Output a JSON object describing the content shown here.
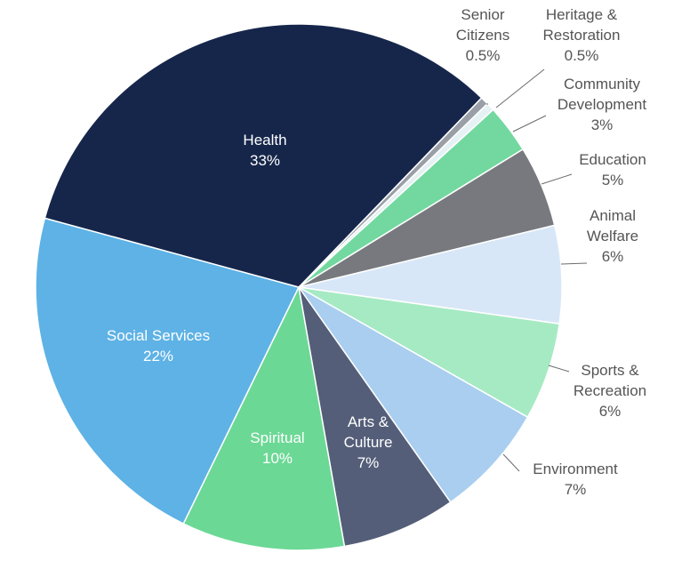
{
  "chart_data": {
    "type": "pie",
    "title": "",
    "start_angle_deg": 44,
    "direction": "clockwise",
    "slices": [
      {
        "label": [
          "Senior",
          "Citizens"
        ],
        "value": 0.5,
        "value_label": "0.5%",
        "color": "#9a9ea6",
        "label_placement": "outside-top"
      },
      {
        "label": [
          "Heritage &",
          "Restoration"
        ],
        "value": 0.5,
        "value_label": "0.5%",
        "color": "#e6f1f4",
        "label_placement": "outside-top"
      },
      {
        "label": [
          "Community",
          "Development"
        ],
        "value": 3,
        "value_label": "3%",
        "color": "#72d89f",
        "label_placement": "outside"
      },
      {
        "label": [
          "Education"
        ],
        "value": 5,
        "value_label": "5%",
        "color": "#77797e",
        "label_placement": "outside"
      },
      {
        "label": [
          "Animal",
          "Welfare"
        ],
        "value": 6,
        "value_label": "6%",
        "color": "#d8e7f7",
        "label_placement": "outside"
      },
      {
        "label": [
          "Sports &",
          "Recreation"
        ],
        "value": 6,
        "value_label": "6%",
        "color": "#a6eac3",
        "label_placement": "outside"
      },
      {
        "label": [
          "Environment"
        ],
        "value": 7,
        "value_label": "7%",
        "color": "#a9ceef",
        "label_placement": "outside"
      },
      {
        "label": [
          "Arts &",
          "Culture"
        ],
        "value": 7,
        "value_label": "7%",
        "color": "#545e79",
        "label_placement": "inside"
      },
      {
        "label": [
          "Spiritual"
        ],
        "value": 10,
        "value_label": "10%",
        "color": "#6cd895",
        "label_placement": "inside"
      },
      {
        "label": [
          "Social Services"
        ],
        "value": 22,
        "value_label": "22%",
        "color": "#5eb2e5",
        "label_placement": "inside"
      },
      {
        "label": [
          "Health"
        ],
        "value": 33,
        "value_label": "33%",
        "color": "#16264b",
        "label_placement": "inside"
      }
    ]
  }
}
